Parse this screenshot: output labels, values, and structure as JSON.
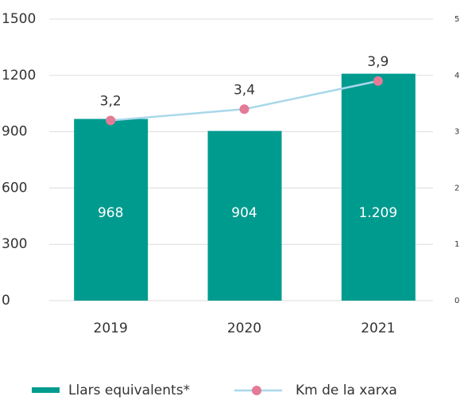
{
  "chart_data": {
    "type": "bar_line",
    "categories": [
      "2019",
      "2020",
      "2021"
    ],
    "series": [
      {
        "name": "Llars equivalents*",
        "type": "bar",
        "color": "#009b8f",
        "values": [
          968,
          904,
          1209
        ],
        "value_labels": [
          "968",
          "904",
          "1.209"
        ]
      },
      {
        "name": "Km de la xarxa",
        "type": "line",
        "axis": "y2",
        "color": "#a8d8ea",
        "marker_color": "#e57a96",
        "values": [
          3.2,
          3.4,
          3.9
        ],
        "value_labels": [
          "3,2",
          "3,4",
          "3,9"
        ]
      }
    ],
    "ylim": [
      0,
      1500
    ],
    "yticks": [
      0,
      300,
      600,
      900,
      1200,
      1500
    ],
    "y2lim": [
      0,
      5
    ],
    "y2ticks": [
      0,
      1,
      2,
      3,
      4,
      5
    ],
    "grid": true
  }
}
